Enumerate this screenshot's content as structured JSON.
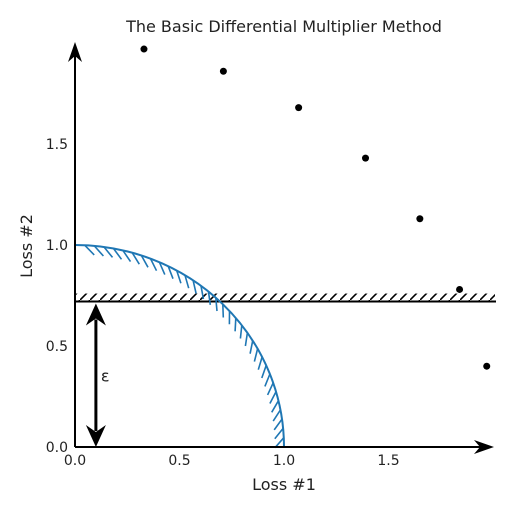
{
  "chart_data": {
    "type": "scatter",
    "title": "The Basic Differential Multiplier Method",
    "xlabel": "Loss #1",
    "ylabel": "Loss #2",
    "xlim": [
      0,
      2.0
    ],
    "ylim": [
      0,
      2.0
    ],
    "xticks": [
      "0.0",
      "0.5",
      "1.0",
      "1.5"
    ],
    "yticks": [
      "0.0",
      "0.5",
      "1.0",
      "1.5"
    ],
    "points": {
      "x": [
        0.33,
        0.71,
        1.07,
        1.39,
        1.65,
        1.84,
        1.97
      ],
      "y": [
        1.97,
        1.86,
        1.68,
        1.43,
        1.13,
        0.78,
        0.4
      ]
    },
    "constraint_line_y": 0.72,
    "unit_circle_radius": 1.0,
    "epsilon_label": "ε",
    "epsilon_x": 0.1,
    "colors": {
      "curve": "#1f77b4",
      "points": "#000000",
      "axes": "#000000"
    }
  }
}
